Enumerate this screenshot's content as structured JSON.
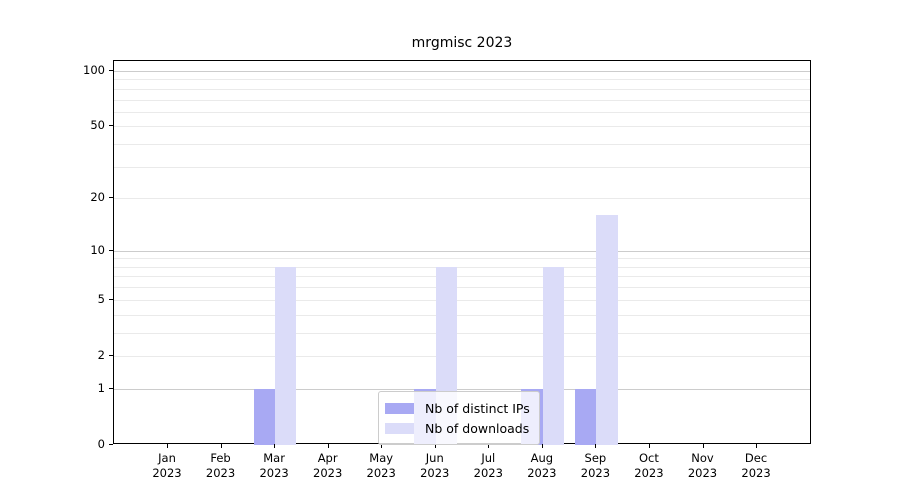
{
  "figure": {
    "title": "mrgmisc 2023",
    "background": "#ffffff"
  },
  "colors": {
    "bar_distinct_ips": "#a8a9f3",
    "bar_downloads": "#dbdcf9",
    "grid_major": "#cccccc",
    "grid_minor": "#eaeaea",
    "spine": "#000000",
    "text": "#000000",
    "legend_border": "#cccccc",
    "legend_background": "rgba(255,255,255,0.8)"
  },
  "chart_data": {
    "type": "bar",
    "title": "mrgmisc 2023",
    "categories": [
      "Jan 2023",
      "Feb 2023",
      "Mar 2023",
      "Apr 2023",
      "May 2023",
      "Jun 2023",
      "Jul 2023",
      "Aug 2023",
      "Sep 2023",
      "Oct 2023",
      "Nov 2023",
      "Dec 2023"
    ],
    "series": [
      {
        "name": "Nb of distinct IPs",
        "color": "#a8a9f3",
        "values": [
          0,
          0,
          1,
          0,
          0,
          1,
          0,
          1,
          1,
          0,
          0,
          0
        ]
      },
      {
        "name": "Nb of downloads",
        "color": "#dbdcf9",
        "values": [
          0,
          0,
          8,
          0,
          0,
          8,
          0,
          8,
          16,
          0,
          0,
          0
        ]
      }
    ],
    "xlabel": "",
    "ylabel": "",
    "y_scale": "log1p",
    "ylim": [
      0,
      110
    ],
    "y_ticks": [
      0,
      1,
      2,
      5,
      10,
      20,
      50,
      100
    ],
    "y_tick_labels": [
      "0",
      "1",
      "2",
      "5",
      "10",
      "20",
      "50",
      "100"
    ],
    "y_major_gridlines": [
      1,
      10,
      100
    ],
    "y_minor_gridlines": [
      2,
      3,
      4,
      5,
      6,
      7,
      8,
      9,
      20,
      30,
      40,
      50,
      60,
      70,
      80,
      90
    ],
    "grid": "horizontal",
    "legend_position": "lower center"
  }
}
